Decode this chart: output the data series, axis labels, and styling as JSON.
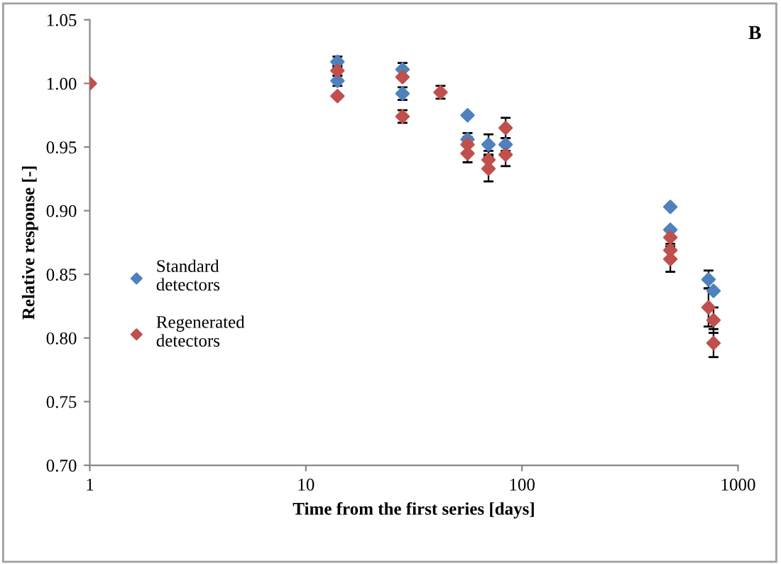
{
  "chart_data": {
    "type": "scatter",
    "xlabel": "Time from the first series [days]",
    "ylabel": "Relative response [-]",
    "annotations": [
      "B"
    ],
    "xlim": [
      1,
      1000
    ],
    "xticks": [
      1,
      10,
      100,
      1000
    ],
    "ylim": [
      0.7,
      1.05
    ],
    "yticks": [
      {
        "value": 0.7,
        "label": "0.70"
      },
      {
        "value": 0.75,
        "label": "0.75"
      },
      {
        "value": 0.8,
        "label": "0.80"
      },
      {
        "value": 0.85,
        "label": "0.85"
      },
      {
        "value": 0.9,
        "label": "0.90"
      },
      {
        "value": 0.95,
        "label": "0.95"
      },
      {
        "value": 1.0,
        "label": "1.00"
      },
      {
        "value": 1.05,
        "label": "1.05"
      }
    ],
    "log": "x",
    "grid": false,
    "legend": "left",
    "marker": "diamond",
    "series": [
      {
        "name": "Standard\ndetectors",
        "color": "#4f81bd",
        "x": [
          14,
          14,
          28,
          28,
          56,
          56,
          70,
          84,
          486,
          486,
          730,
          770
        ],
        "values": [
          1.017,
          1.002,
          1.011,
          0.992,
          0.975,
          0.956,
          0.952,
          0.952,
          0.903,
          0.885,
          0.846,
          0.837
        ],
        "errors": [
          0.004,
          0.004,
          0.005,
          0.005,
          null,
          0.005,
          0.008,
          0.005,
          null,
          null,
          0.007,
          null
        ]
      },
      {
        "name": "Regenerated\ndetectors",
        "color": "#c0504d",
        "x": [
          1,
          14,
          14,
          28,
          28,
          42,
          56,
          56,
          70,
          70,
          84,
          84,
          486,
          486,
          486,
          730,
          770,
          770
        ],
        "values": [
          1.0,
          1.01,
          0.99,
          1.005,
          0.974,
          0.993,
          0.952,
          0.945,
          0.94,
          0.933,
          0.965,
          0.944,
          0.879,
          0.869,
          0.862,
          0.824,
          0.814,
          0.796
        ],
        "errors": [
          null,
          0.004,
          null,
          null,
          0.005,
          0.005,
          0.006,
          0.007,
          0.007,
          0.01,
          0.008,
          0.009,
          0.005,
          null,
          0.01,
          0.015,
          0.01,
          0.011
        ]
      }
    ]
  }
}
